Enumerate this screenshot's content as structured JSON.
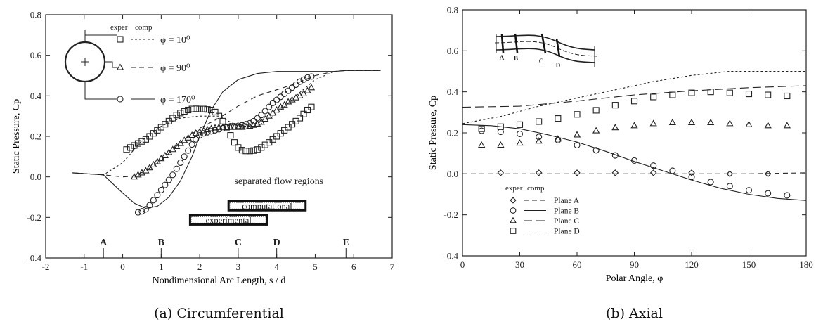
{
  "chart_data": [
    {
      "type": "line",
      "caption": "(a) Circumferential",
      "xlabel": "Nondimensional Arc Length,  s / d",
      "ylabel": "Static Pressure,  Cp",
      "xlim": [
        -2,
        7
      ],
      "ylim": [
        -0.4,
        0.8
      ],
      "xticks": [
        -2,
        -1,
        0,
        1,
        2,
        3,
        4,
        5,
        6,
        7
      ],
      "yticks": [
        -0.4,
        -0.2,
        0.0,
        0.2,
        0.4,
        0.6,
        0.8
      ],
      "xtick_labels": [
        "-2",
        "-1",
        "0",
        "1",
        "2",
        "3",
        "4",
        "5",
        "6",
        "7"
      ],
      "ytick_labels": [
        "-0.4",
        "-0.2",
        "0.0",
        "0.2",
        "0.4",
        "0.6",
        "0.8"
      ],
      "grid": false,
      "legend_header": [
        "exper",
        "comp"
      ],
      "legend": [
        {
          "marker": "square",
          "style": "dotted",
          "label": "φ = 10⁰"
        },
        {
          "marker": "triangle",
          "style": "dashed",
          "label": "φ = 90⁰"
        },
        {
          "marker": "circle",
          "style": "solid",
          "label": "φ = 170⁰"
        }
      ],
      "annotations": {
        "title": "separated flow regions",
        "computational_label": "computational",
        "computational_range": [
          2.75,
          4.75
        ],
        "experimental_label": "experimental",
        "experimental_range": [
          1.75,
          3.75
        ],
        "stations": [
          {
            "label": "A",
            "x": -0.5
          },
          {
            "label": "B",
            "x": 1.0
          },
          {
            "label": "C",
            "x": 3.0
          },
          {
            "label": "D",
            "x": 4.0
          },
          {
            "label": "E",
            "x": 5.8
          }
        ]
      },
      "series": [
        {
          "style": "dotted",
          "marker": "square",
          "x": [
            -1.3,
            -0.5,
            0.0,
            0.5,
            1.0,
            1.5,
            2.0,
            2.5,
            3.0,
            3.5,
            4.0,
            4.5,
            5.0,
            5.5,
            5.8,
            6.7
          ],
          "y": [
            0.02,
            0.01,
            0.07,
            0.18,
            0.25,
            0.29,
            0.3,
            0.3,
            0.25,
            0.25,
            0.31,
            0.4,
            0.48,
            0.52,
            0.525,
            0.525
          ],
          "exp_x": [
            0.1,
            0.2,
            0.3,
            0.4,
            0.5,
            0.6,
            0.7,
            0.8,
            0.9,
            1.0,
            1.1,
            1.2,
            1.3,
            1.4,
            1.5,
            1.6,
            1.7,
            1.8,
            1.9,
            2.0,
            2.1,
            2.2,
            2.3,
            2.4,
            2.5,
            2.6,
            2.7,
            2.8,
            2.9,
            3.0,
            3.1,
            3.2,
            3.3,
            3.4,
            3.5,
            3.6,
            3.7,
            3.8,
            3.9,
            4.0,
            4.1,
            4.2,
            4.3,
            4.4,
            4.5,
            4.6,
            4.7,
            4.8,
            4.9
          ],
          "exp_y": [
            0.135,
            0.145,
            0.155,
            0.165,
            0.175,
            0.185,
            0.2,
            0.215,
            0.23,
            0.245,
            0.26,
            0.275,
            0.29,
            0.305,
            0.315,
            0.323,
            0.33,
            0.335,
            0.336,
            0.335,
            0.335,
            0.333,
            0.33,
            0.32,
            0.3,
            0.275,
            0.245,
            0.205,
            0.17,
            0.145,
            0.132,
            0.128,
            0.128,
            0.13,
            0.135,
            0.145,
            0.158,
            0.17,
            0.185,
            0.2,
            0.215,
            0.23,
            0.245,
            0.26,
            0.275,
            0.29,
            0.31,
            0.33,
            0.345
          ]
        },
        {
          "style": "dashed",
          "marker": "triangle",
          "x": [
            -1.3,
            -0.5,
            0.0,
            0.3,
            0.6,
            1.0,
            1.5,
            2.0,
            2.5,
            3.0,
            3.5,
            4.0,
            4.5,
            5.0,
            5.5,
            5.8,
            6.7
          ],
          "y": [
            0.02,
            0.01,
            0.0,
            0.005,
            0.03,
            0.08,
            0.17,
            0.24,
            0.29,
            0.35,
            0.4,
            0.43,
            0.46,
            0.5,
            0.52,
            0.525,
            0.525
          ],
          "exp_x": [
            0.3,
            0.4,
            0.5,
            0.6,
            0.7,
            0.8,
            0.9,
            1.0,
            1.1,
            1.2,
            1.3,
            1.4,
            1.5,
            1.6,
            1.7,
            1.8,
            1.9,
            2.0,
            2.1,
            2.2,
            2.3,
            2.4,
            2.5,
            2.6,
            2.7,
            2.8,
            2.9,
            3.0,
            3.1,
            3.2,
            3.3,
            3.4,
            3.5,
            3.6,
            3.7,
            3.8,
            3.9,
            4.0,
            4.1,
            4.2,
            4.3,
            4.4,
            4.5,
            4.6,
            4.7,
            4.8,
            4.9
          ],
          "exp_y": [
            0.0,
            0.01,
            0.02,
            0.03,
            0.045,
            0.06,
            0.075,
            0.09,
            0.105,
            0.12,
            0.135,
            0.15,
            0.165,
            0.18,
            0.192,
            0.205,
            0.215,
            0.222,
            0.228,
            0.233,
            0.238,
            0.242,
            0.245,
            0.245,
            0.245,
            0.245,
            0.245,
            0.245,
            0.245,
            0.247,
            0.25,
            0.255,
            0.26,
            0.27,
            0.285,
            0.3,
            0.315,
            0.33,
            0.345,
            0.355,
            0.37,
            0.38,
            0.39,
            0.4,
            0.41,
            0.425,
            0.44
          ]
        },
        {
          "style": "solid",
          "marker": "circle",
          "x": [
            -1.3,
            -0.5,
            0.0,
            0.3,
            0.6,
            0.9,
            1.2,
            1.5,
            1.8,
            2.0,
            2.3,
            2.6,
            3.0,
            3.5,
            4.0,
            4.5,
            5.0,
            5.5,
            5.8,
            6.7
          ],
          "y": [
            0.02,
            0.01,
            -0.08,
            -0.13,
            -0.155,
            -0.145,
            -0.1,
            -0.02,
            0.1,
            0.2,
            0.33,
            0.42,
            0.48,
            0.51,
            0.52,
            0.52,
            0.52,
            0.52,
            0.525,
            0.525
          ],
          "exp_x": [
            0.4,
            0.5,
            0.6,
            0.7,
            0.8,
            0.9,
            1.0,
            1.1,
            1.2,
            1.3,
            1.4,
            1.5,
            1.6,
            1.7,
            1.8,
            1.9,
            2.0,
            2.1,
            2.2,
            2.3,
            2.4,
            2.5,
            2.6,
            2.7,
            2.8,
            2.9,
            3.0,
            3.1,
            3.2,
            3.3,
            3.4,
            3.5,
            3.6,
            3.7,
            3.8,
            3.9,
            4.0,
            4.1,
            4.2,
            4.3,
            4.4,
            4.5,
            4.6,
            4.7,
            4.8,
            4.9
          ],
          "exp_y": [
            -0.175,
            -0.17,
            -0.16,
            -0.14,
            -0.115,
            -0.09,
            -0.065,
            -0.04,
            -0.015,
            0.01,
            0.04,
            0.07,
            0.1,
            0.13,
            0.16,
            0.185,
            0.205,
            0.215,
            0.22,
            0.225,
            0.23,
            0.235,
            0.24,
            0.245,
            0.25,
            0.25,
            0.252,
            0.255,
            0.26,
            0.265,
            0.275,
            0.29,
            0.305,
            0.325,
            0.345,
            0.365,
            0.38,
            0.395,
            0.41,
            0.425,
            0.44,
            0.455,
            0.47,
            0.48,
            0.49,
            0.495
          ]
        }
      ]
    },
    {
      "type": "line",
      "caption": "(b) Axial",
      "xlabel": "Polar Angle,  φ",
      "ylabel": "Static Pressure,  Cp",
      "xlim": [
        0,
        180
      ],
      "ylim": [
        -0.4,
        0.8
      ],
      "xticks": [
        0,
        30,
        60,
        90,
        120,
        150,
        180
      ],
      "yticks": [
        -0.4,
        -0.2,
        0.0,
        0.2,
        0.4,
        0.6,
        0.8
      ],
      "xtick_labels": [
        "0",
        "30",
        "60",
        "90",
        "120",
        "150",
        "180"
      ],
      "ytick_labels": [
        "-0.4",
        "-0.2",
        "0.0",
        "0.2",
        "0.4",
        "0.6",
        "0.8"
      ],
      "grid": false,
      "legend_header": [
        "exper",
        "comp"
      ],
      "inset_labels": [
        "A",
        "B",
        "C",
        "D"
      ],
      "series": [
        {
          "name": "Plane A",
          "marker": "diamond",
          "style": "dashed",
          "x": [
            0,
            30,
            60,
            90,
            120,
            150,
            180
          ],
          "y": [
            0.0,
            0.0,
            0.0,
            0.0,
            0.0,
            0.0,
            0.005
          ],
          "exp_x": [
            20,
            40,
            60,
            80,
            100,
            120,
            140,
            160
          ],
          "exp_y": [
            0.005,
            0.005,
            0.005,
            0.005,
            0.005,
            0.005,
            0.0,
            0.0
          ]
        },
        {
          "name": "Plane B",
          "marker": "circle",
          "style": "solid",
          "x": [
            0,
            15,
            30,
            45,
            60,
            75,
            90,
            105,
            120,
            135,
            150,
            165,
            180
          ],
          "y": [
            0.24,
            0.235,
            0.22,
            0.19,
            0.155,
            0.11,
            0.06,
            0.015,
            -0.03,
            -0.07,
            -0.1,
            -0.12,
            -0.13
          ],
          "exp_x": [
            10,
            20,
            30,
            40,
            50,
            60,
            70,
            80,
            90,
            100,
            110,
            120,
            130,
            140,
            150,
            160,
            170
          ],
          "exp_y": [
            0.21,
            0.205,
            0.195,
            0.18,
            0.165,
            0.14,
            0.115,
            0.09,
            0.065,
            0.04,
            0.015,
            -0.015,
            -0.04,
            -0.06,
            -0.08,
            -0.095,
            -0.105
          ]
        },
        {
          "name": "Plane C",
          "marker": "triangle",
          "style": "long-dash",
          "x": [
            0,
            30,
            60,
            90,
            120,
            150,
            180
          ],
          "y": [
            0.325,
            0.33,
            0.355,
            0.385,
            0.405,
            0.42,
            0.43
          ],
          "exp_x": [
            10,
            20,
            30,
            40,
            50,
            60,
            70,
            80,
            90,
            100,
            110,
            120,
            130,
            140,
            150,
            160,
            170
          ],
          "exp_y": [
            0.14,
            0.14,
            0.15,
            0.16,
            0.17,
            0.19,
            0.21,
            0.225,
            0.235,
            0.245,
            0.25,
            0.25,
            0.25,
            0.245,
            0.24,
            0.235,
            0.235
          ]
        },
        {
          "name": "Plane D",
          "marker": "square",
          "style": "dotted",
          "x": [
            0,
            20,
            40,
            60,
            80,
            100,
            120,
            140,
            160,
            180
          ],
          "y": [
            0.245,
            0.28,
            0.33,
            0.37,
            0.41,
            0.45,
            0.48,
            0.5,
            0.5,
            0.5
          ],
          "exp_x": [
            10,
            20,
            30,
            40,
            50,
            60,
            70,
            80,
            90,
            100,
            110,
            120,
            130,
            140,
            150,
            160,
            170
          ],
          "exp_y": [
            0.22,
            0.23,
            0.24,
            0.255,
            0.27,
            0.29,
            0.31,
            0.335,
            0.355,
            0.375,
            0.385,
            0.395,
            0.4,
            0.395,
            0.39,
            0.385,
            0.38
          ]
        }
      ]
    }
  ]
}
